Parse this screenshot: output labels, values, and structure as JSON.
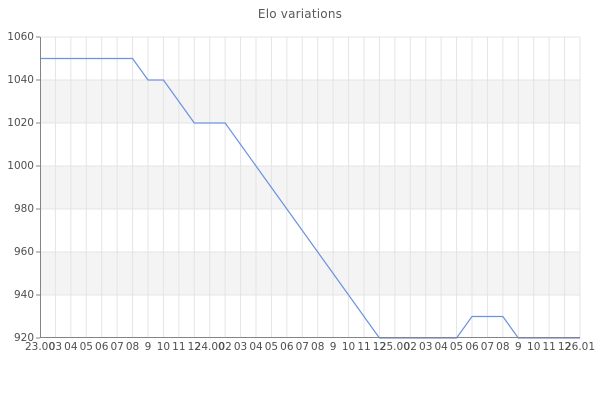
{
  "title": "Elo variations",
  "colors": {
    "background": "#ffffff",
    "band": "#f4f4f4",
    "grid": "#e4e4e4",
    "axis": "#848484",
    "line": "#6d92e0",
    "tick_text": "#4f4f4f",
    "title_text": "#595959"
  },
  "chart_data": {
    "type": "line",
    "title": "Elo variations",
    "xlabel": "",
    "ylabel": "",
    "legend": "none",
    "grid": "on",
    "ylim": [
      920,
      1060
    ],
    "y_ticks": [
      1060,
      1040,
      1020,
      1000,
      980,
      960,
      940,
      920
    ],
    "x_labels": [
      "23.00",
      "03",
      "04",
      "05",
      "06",
      "07",
      "08",
      "9",
      "10",
      "11",
      "12",
      "24.00",
      "02",
      "03",
      "04",
      "05",
      "06",
      "07",
      "08",
      "9",
      "10",
      "11",
      "12",
      "25.00",
      "02",
      "03",
      "04",
      "05",
      "06",
      "07",
      "08",
      "9",
      "10",
      "11",
      "12",
      "26.01"
    ],
    "series": [
      {
        "name": "Elo",
        "values": [
          1050,
          1050,
          1050,
          1050,
          1050,
          1050,
          1050,
          1040,
          1040,
          1030,
          1020,
          1020,
          1020,
          1010,
          1000,
          990,
          980,
          970,
          960,
          950,
          940,
          930,
          920,
          920,
          920,
          920,
          920,
          920,
          930,
          930,
          930,
          920,
          920,
          920,
          920,
          920
        ]
      }
    ]
  }
}
